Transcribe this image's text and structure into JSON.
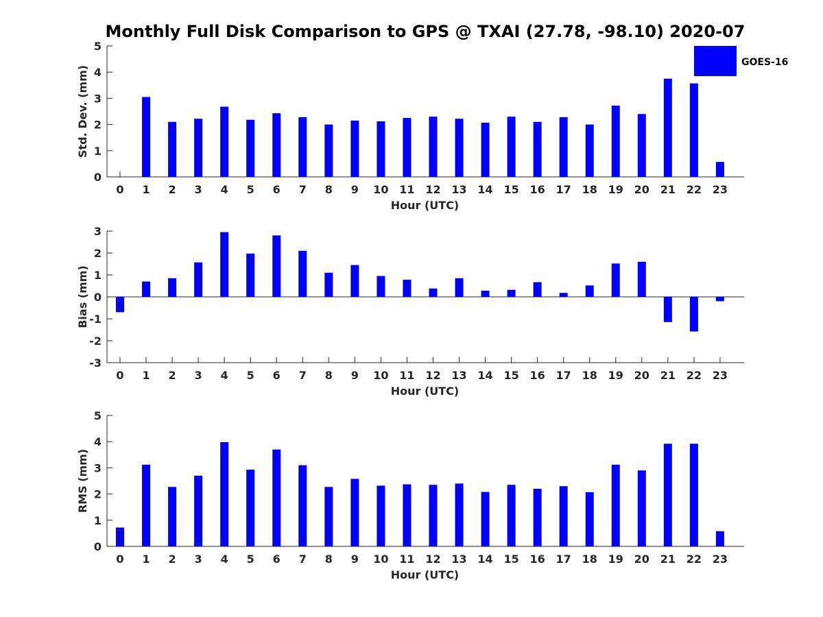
{
  "title": "Monthly Full Disk Comparison to GPS @ TXAI (27.78, -98.10) 2020-07",
  "legend": {
    "label": "GOES-16",
    "color": "#0000ff"
  },
  "chart_data": [
    {
      "type": "bar",
      "xlabel": "Hour (UTC)",
      "ylabel": "Std. Dev. (mm)",
      "ylim": [
        0,
        5
      ],
      "yticks": [
        0,
        1,
        2,
        3,
        4,
        5
      ],
      "categories": [
        "0",
        "1",
        "2",
        "3",
        "4",
        "5",
        "6",
        "7",
        "8",
        "9",
        "10",
        "11",
        "12",
        "13",
        "14",
        "15",
        "16",
        "17",
        "18",
        "19",
        "20",
        "21",
        "22",
        "23"
      ],
      "series": [
        {
          "name": "GOES-16",
          "values": [
            0,
            3.05,
            2.1,
            2.22,
            2.68,
            2.18,
            2.43,
            2.28,
            2.0,
            2.15,
            2.12,
            2.25,
            2.3,
            2.22,
            2.07,
            2.3,
            2.1,
            2.28,
            2.0,
            2.72,
            2.4,
            3.75,
            3.57,
            0.57
          ]
        }
      ]
    },
    {
      "type": "bar",
      "xlabel": "Hour (UTC)",
      "ylabel": "Bias (mm)",
      "ylim": [
        -3,
        3
      ],
      "yticks": [
        -3,
        -2,
        -1,
        0,
        1,
        2,
        3
      ],
      "categories": [
        "0",
        "1",
        "2",
        "3",
        "4",
        "5",
        "6",
        "7",
        "8",
        "9",
        "10",
        "11",
        "12",
        "13",
        "14",
        "15",
        "16",
        "17",
        "18",
        "19",
        "20",
        "21",
        "22",
        "23"
      ],
      "series": [
        {
          "name": "GOES-16",
          "values": [
            -0.7,
            0.7,
            0.85,
            1.57,
            2.95,
            1.97,
            2.8,
            2.1,
            1.1,
            1.45,
            0.95,
            0.78,
            0.38,
            0.85,
            0.28,
            0.32,
            0.67,
            0.18,
            0.52,
            1.52,
            1.6,
            -1.15,
            -1.58,
            -0.2
          ]
        }
      ]
    },
    {
      "type": "bar",
      "xlabel": "Hour (UTC)",
      "ylabel": "RMS (mm)",
      "ylim": [
        0,
        5
      ],
      "yticks": [
        0,
        1,
        2,
        3,
        4,
        5
      ],
      "categories": [
        "0",
        "1",
        "2",
        "3",
        "4",
        "5",
        "6",
        "7",
        "8",
        "9",
        "10",
        "11",
        "12",
        "13",
        "14",
        "15",
        "16",
        "17",
        "18",
        "19",
        "20",
        "21",
        "22",
        "23"
      ],
      "series": [
        {
          "name": "GOES-16",
          "values": [
            0.72,
            3.12,
            2.27,
            2.7,
            3.98,
            2.93,
            3.7,
            3.1,
            2.27,
            2.58,
            2.32,
            2.37,
            2.35,
            2.4,
            2.08,
            2.35,
            2.2,
            2.3,
            2.07,
            3.12,
            2.9,
            3.92,
            3.92,
            0.58
          ]
        }
      ]
    }
  ]
}
